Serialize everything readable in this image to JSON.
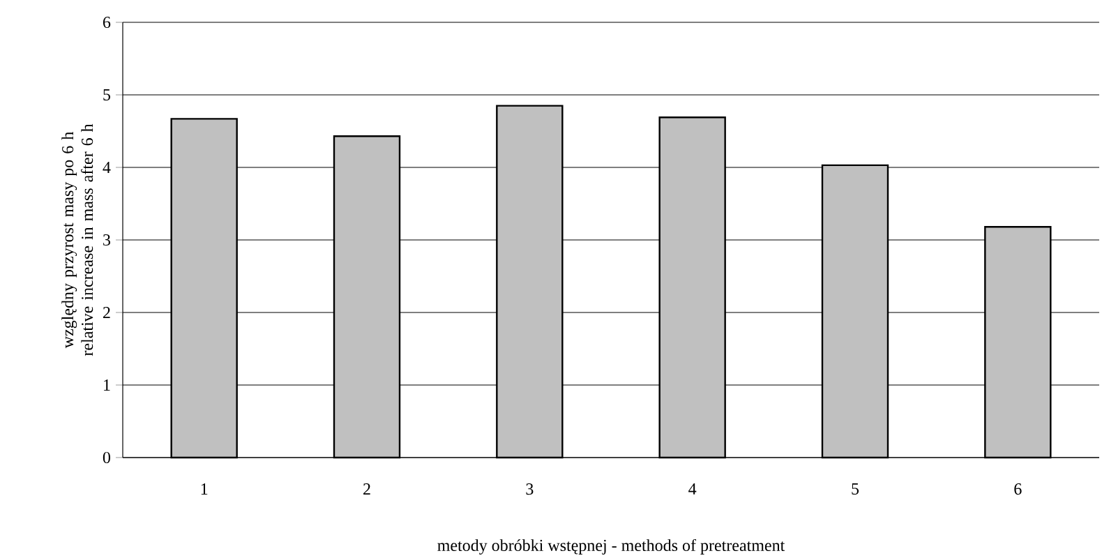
{
  "chart_data": {
    "type": "bar",
    "xlabel": "metody obróbki wstępnej - methods of pretreatment",
    "ylabel": "względny przyrost masy po 6 h\nrelative increase in mass after 6 h",
    "categories": [
      "1",
      "2",
      "3",
      "4",
      "5",
      "6"
    ],
    "values": [
      4.67,
      4.43,
      4.85,
      4.69,
      4.03,
      3.18
    ],
    "color": "#c0c0c0",
    "ylim": [
      0,
      6
    ],
    "yticks": [
      0,
      1,
      2,
      3,
      4,
      5,
      6
    ],
    "grid": "y"
  }
}
